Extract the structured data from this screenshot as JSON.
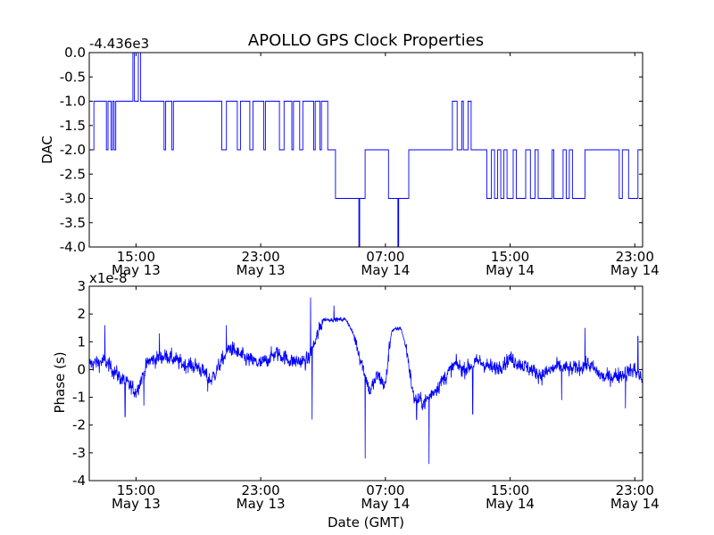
{
  "chart_data": [
    {
      "type": "line",
      "title": "APOLLO GPS Clock Properties",
      "ylabel": "DAC",
      "xlabel": "",
      "offset_label": "-4.436e3",
      "ylim": [
        -4.0,
        0.0
      ],
      "xlim_hours": [
        12.0,
        47.5
      ],
      "yticks": [
        0.0,
        -0.5,
        -1.0,
        -1.5,
        -2.0,
        -2.5,
        -3.0,
        -3.5,
        -4.0
      ],
      "ytick_labels": [
        "0.0",
        "-0.5",
        "-1.0",
        "-1.5",
        "-2.0",
        "-2.5",
        "-3.0",
        "-3.5",
        "-4.0"
      ],
      "xtick_hours": [
        15,
        23,
        31,
        39,
        47
      ],
      "xtick_labels": [
        {
          "time": "15:00",
          "date": "May 13"
        },
        {
          "time": "23:00",
          "date": "May 13"
        },
        {
          "time": "07:00",
          "date": "May 14"
        },
        {
          "time": "15:00",
          "date": "May 14"
        },
        {
          "time": "23:00",
          "date": "May 14"
        }
      ],
      "series": [
        {
          "name": "DAC",
          "color": "#0000ff",
          "steps": [
            [
              12.0,
              -2
            ],
            [
              12.3,
              -1
            ],
            [
              13.1,
              -2
            ],
            [
              13.2,
              -1
            ],
            [
              13.4,
              -2
            ],
            [
              13.5,
              -1
            ],
            [
              13.6,
              -2
            ],
            [
              13.7,
              -1
            ],
            [
              14.8,
              0
            ],
            [
              14.9,
              -1
            ],
            [
              15.15,
              0
            ],
            [
              15.3,
              -1
            ],
            [
              16.8,
              -2
            ],
            [
              16.9,
              -1
            ],
            [
              17.3,
              -2
            ],
            [
              17.4,
              -1
            ],
            [
              20.5,
              -2
            ],
            [
              20.8,
              -1
            ],
            [
              21.5,
              -2
            ],
            [
              21.7,
              -1
            ],
            [
              22.3,
              -2
            ],
            [
              22.5,
              -1
            ],
            [
              23.2,
              -2
            ],
            [
              23.3,
              -1
            ],
            [
              24.2,
              -2
            ],
            [
              24.5,
              -1
            ],
            [
              25.0,
              -2
            ],
            [
              25.1,
              -1
            ],
            [
              25.5,
              -2
            ],
            [
              25.7,
              -1
            ],
            [
              26.4,
              -2
            ],
            [
              26.5,
              -1
            ],
            [
              26.8,
              -2
            ],
            [
              26.9,
              -1
            ],
            [
              27.3,
              -2
            ],
            [
              27.8,
              -3
            ],
            [
              29.3,
              -4
            ],
            [
              29.35,
              -3
            ],
            [
              29.7,
              -2
            ],
            [
              31.2,
              -3
            ],
            [
              31.8,
              -4
            ],
            [
              31.85,
              -3
            ],
            [
              32.5,
              -2
            ],
            [
              33.2,
              -2
            ],
            [
              34.2,
              -2
            ],
            [
              35.3,
              -1
            ],
            [
              35.6,
              -2
            ],
            [
              35.9,
              -1
            ],
            [
              36.0,
              -2
            ],
            [
              36.3,
              -1
            ],
            [
              36.5,
              -2
            ],
            [
              37.5,
              -3
            ],
            [
              37.8,
              -2
            ],
            [
              38.0,
              -3
            ],
            [
              38.2,
              -2
            ],
            [
              38.4,
              -3
            ],
            [
              38.6,
              -2
            ],
            [
              38.8,
              -3
            ],
            [
              39.2,
              -2
            ],
            [
              39.4,
              -3
            ],
            [
              40.0,
              -2
            ],
            [
              40.3,
              -3
            ],
            [
              40.6,
              -2
            ],
            [
              40.8,
              -3
            ],
            [
              41.7,
              -2
            ],
            [
              41.8,
              -3
            ],
            [
              42.4,
              -2
            ],
            [
              42.6,
              -3
            ],
            [
              42.8,
              -2
            ],
            [
              43.0,
              -3
            ],
            [
              43.8,
              -2
            ],
            [
              46.0,
              -3
            ],
            [
              46.2,
              -2
            ],
            [
              46.6,
              -3
            ],
            [
              47.2,
              -2
            ],
            [
              47.5,
              -2
            ]
          ]
        }
      ]
    },
    {
      "type": "line",
      "title": "",
      "ylabel": "Phase (s)",
      "xlabel": "Date (GMT)",
      "offset_label": "x1e-8",
      "ylim": [
        -4,
        3
      ],
      "xlim_hours": [
        12.0,
        47.5
      ],
      "yticks": [
        3,
        2,
        1,
        0,
        -1,
        -2,
        -3,
        -4
      ],
      "ytick_labels": [
        "3",
        "2",
        "1",
        "0",
        "-1",
        "-2",
        "-3",
        "-4"
      ],
      "xtick_hours": [
        15,
        23,
        31,
        39,
        47
      ],
      "xtick_labels": [
        {
          "time": "15:00",
          "date": "May 13"
        },
        {
          "time": "23:00",
          "date": "May 13"
        },
        {
          "time": "07:00",
          "date": "May 14"
        },
        {
          "time": "15:00",
          "date": "May 14"
        },
        {
          "time": "23:00",
          "date": "May 14"
        }
      ],
      "series": [
        {
          "name": "Phase",
          "color": "#0000ff",
          "baseline": [
            [
              12.0,
              0.2
            ],
            [
              13.0,
              0.3
            ],
            [
              14.0,
              -0.3
            ],
            [
              15.0,
              -0.8
            ],
            [
              15.8,
              0.3
            ],
            [
              17.0,
              0.5
            ],
            [
              18.0,
              0.2
            ],
            [
              19.0,
              0.1
            ],
            [
              19.8,
              -0.4
            ],
            [
              21.0,
              0.8
            ],
            [
              22.0,
              0.4
            ],
            [
              23.0,
              0.2
            ],
            [
              24.0,
              0.6
            ],
            [
              25.0,
              0.3
            ],
            [
              26.0,
              0.3
            ],
            [
              26.5,
              1.0
            ],
            [
              27.0,
              1.8
            ],
            [
              28.5,
              1.8
            ],
            [
              29.0,
              1.2
            ],
            [
              29.5,
              0.2
            ],
            [
              30.0,
              -0.8
            ],
            [
              30.5,
              -0.2
            ],
            [
              31.0,
              -0.6
            ],
            [
              31.2,
              0.5
            ],
            [
              31.4,
              1.4
            ],
            [
              32.0,
              1.5
            ],
            [
              32.4,
              0.6
            ],
            [
              32.8,
              -1.0
            ],
            [
              33.5,
              -1.2
            ],
            [
              34.5,
              -0.5
            ],
            [
              35.5,
              0.2
            ],
            [
              36.0,
              0.0
            ],
            [
              37.0,
              0.3
            ],
            [
              38.0,
              0.0
            ],
            [
              39.0,
              0.4
            ],
            [
              40.0,
              0.1
            ],
            [
              41.0,
              -0.2
            ],
            [
              42.0,
              0.1
            ],
            [
              43.0,
              0.0
            ],
            [
              44.0,
              0.2
            ],
            [
              45.0,
              -0.3
            ],
            [
              46.0,
              -0.2
            ],
            [
              47.0,
              0.0
            ],
            [
              47.5,
              -0.4
            ]
          ],
          "spikes": [
            [
              13.0,
              1.6
            ],
            [
              14.3,
              -1.7
            ],
            [
              15.5,
              -1.3
            ],
            [
              16.5,
              1.3
            ],
            [
              19.6,
              -0.8
            ],
            [
              20.8,
              1.6
            ],
            [
              26.2,
              2.6
            ],
            [
              26.3,
              -1.8
            ],
            [
              27.7,
              2.3
            ],
            [
              29.7,
              -3.2
            ],
            [
              33.0,
              -1.8
            ],
            [
              33.8,
              -3.4
            ],
            [
              36.6,
              -1.6
            ],
            [
              42.3,
              -1.1
            ],
            [
              43.8,
              1.5
            ],
            [
              46.4,
              -1.4
            ],
            [
              47.2,
              1.2
            ]
          ]
        }
      ]
    }
  ]
}
